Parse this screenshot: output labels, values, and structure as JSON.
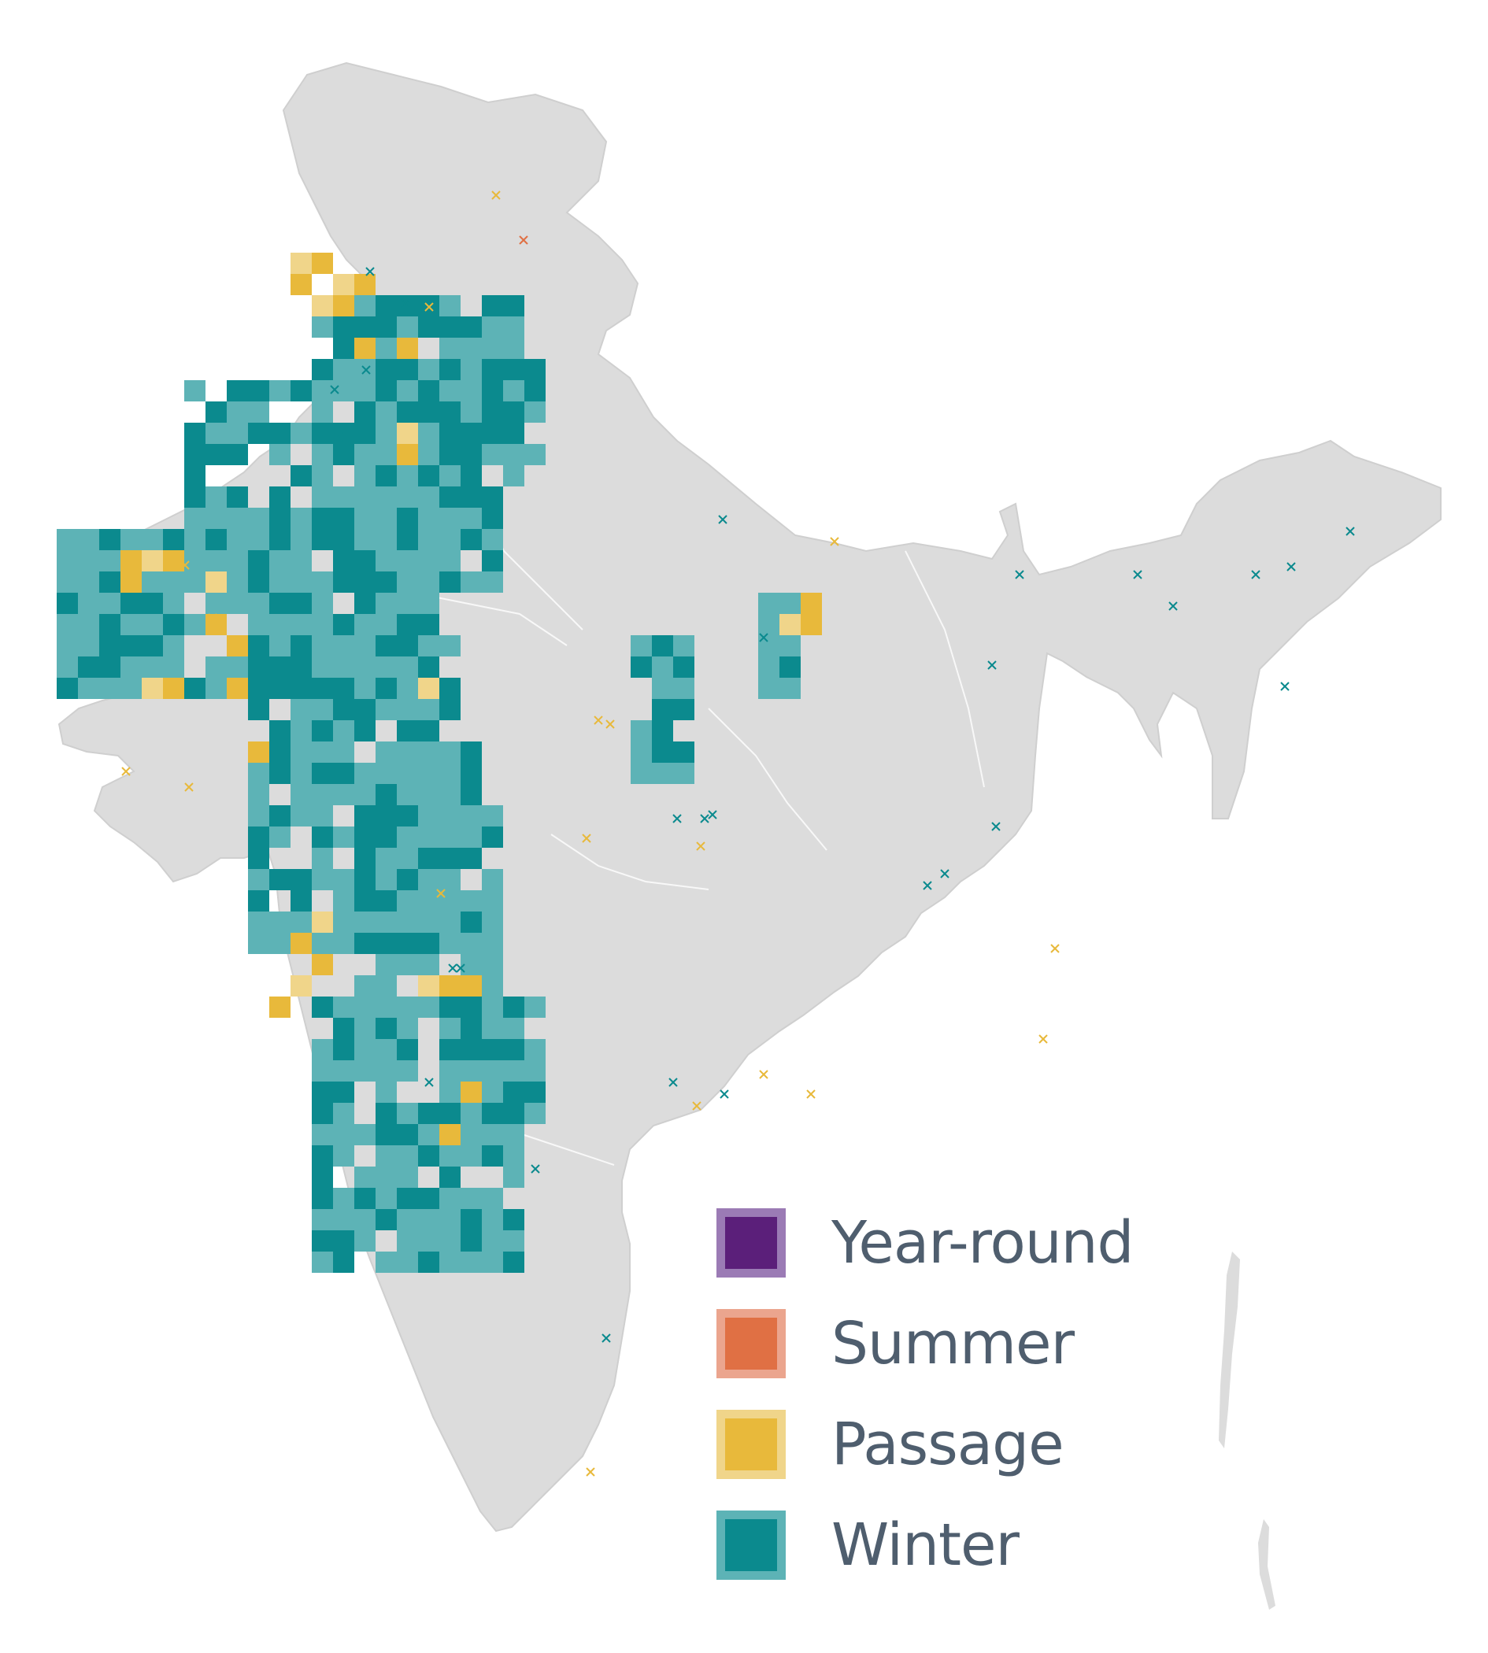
{
  "map": {
    "region": "India",
    "base_fill": "#dcdcdc",
    "border_color": "#ffffff"
  },
  "legend": {
    "items": [
      {
        "label": "Year-round",
        "fill": "#5b1f7a",
        "border": "#9b7bb5"
      },
      {
        "label": "Summer",
        "fill": "#e07044",
        "border": "#eba58e"
      },
      {
        "label": "Passage",
        "fill": "#e8b93b",
        "border": "#f0d58a"
      },
      {
        "label": "Winter",
        "fill": "#0b8a8e",
        "border": "#5db3b6"
      }
    ]
  },
  "seasons": {
    "winter": {
      "strong": "#0b8a8e",
      "light": "#5db3b6"
    },
    "passage": {
      "strong": "#e8b93b",
      "light": "#f0d58a"
    },
    "summer": {
      "strong": "#e07044"
    }
  }
}
